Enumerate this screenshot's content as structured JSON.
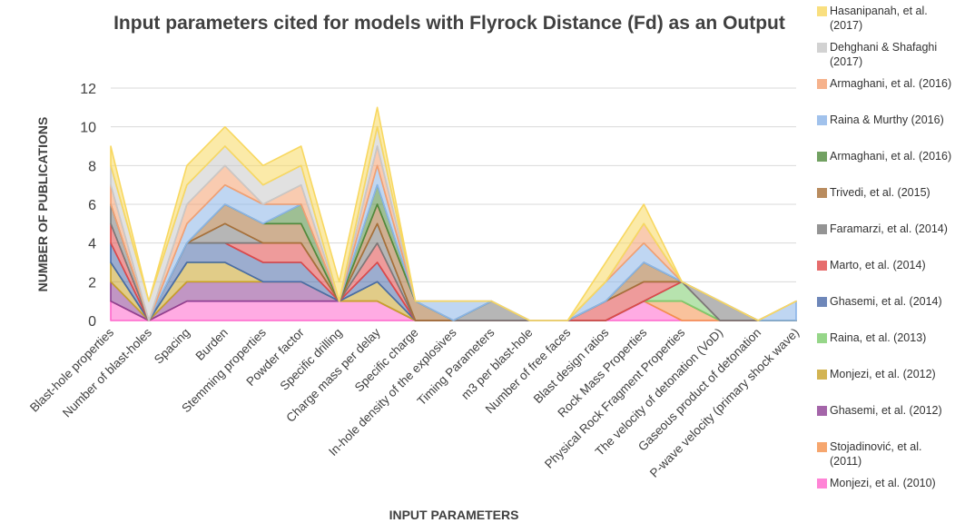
{
  "chart_data": {
    "type": "stacked_area",
    "title": "Input parameters cited for models with Flyrock Distance (Fd) as an Output",
    "x_label": "INPUT PARAMETERS",
    "y_label": "NUMBER OF PUBLICATIONS",
    "categories": [
      "Blast-hole properties",
      "Number of blast-holes",
      "Spacing",
      "Burden",
      "Stemming properties",
      "Powder factor",
      "Specific drilling",
      "Charge mass per delay",
      "Specific charge",
      "In-hole density of the explosives",
      "Timing Parameters",
      "m3 per blast-hole",
      "Number of free faces",
      "Blast design ratios",
      "Rock Mass Properties",
      "Physical Rock Fragment Properties",
      "The velocity of detonation (VoD)",
      "Gaseous product of detonation",
      "P-wave velocity (primary shock wave)"
    ],
    "series": [
      {
        "name": "Monjezi, et al. (2010)",
        "color": "#ff66cc",
        "values": [
          1,
          0,
          1,
          1,
          1,
          1,
          1,
          1,
          0,
          0,
          0,
          0,
          0,
          0,
          1,
          0,
          0,
          0,
          0
        ]
      },
      {
        "name": "Stojadinović, et al. (2011)",
        "color": "#f4904a",
        "values": [
          0,
          0,
          0,
          0,
          0,
          0,
          0,
          0,
          0,
          0,
          0,
          0,
          0,
          0,
          0,
          1,
          0,
          0,
          0
        ]
      },
      {
        "name": "Ghasemi, et al. (2012)",
        "color": "#8e3f94",
        "values": [
          1,
          0,
          1,
          1,
          1,
          1,
          0,
          0,
          0,
          0,
          0,
          0,
          0,
          0,
          0,
          0,
          0,
          0,
          0
        ]
      },
      {
        "name": "Monjezi, et al. (2012)",
        "color": "#c9a227",
        "values": [
          1,
          0,
          1,
          1,
          0,
          0,
          0,
          1,
          0,
          0,
          0,
          0,
          0,
          0,
          0,
          0,
          0,
          0,
          0
        ]
      },
      {
        "name": "Raina, et al. (2013)",
        "color": "#7ccc6c",
        "values": [
          0,
          0,
          0,
          0,
          0,
          0,
          0,
          0,
          0,
          0,
          0,
          0,
          0,
          0,
          0,
          1,
          0,
          0,
          0
        ]
      },
      {
        "name": "Ghasemi, et al. (2014)",
        "color": "#4a6aa8",
        "values": [
          1,
          0,
          1,
          1,
          1,
          1,
          0,
          1,
          0,
          0,
          0,
          0,
          0,
          0,
          0,
          0,
          0,
          0,
          0
        ]
      },
      {
        "name": "Marto, et al. (2014)",
        "color": "#e04848",
        "values": [
          1,
          0,
          0,
          0,
          1,
          1,
          0,
          1,
          0,
          0,
          0,
          0,
          0,
          1,
          1,
          0,
          0,
          0,
          0
        ]
      },
      {
        "name": "Faramarzi, et al. (2014)",
        "color": "#7a7a7a",
        "values": [
          1,
          0,
          0,
          1,
          0,
          0,
          0,
          1,
          0,
          0,
          1,
          0,
          0,
          0,
          0,
          0,
          1,
          0,
          0
        ]
      },
      {
        "name": "Trivedi, et al. (2015)",
        "color": "#a87038",
        "values": [
          0,
          0,
          0,
          1,
          1,
          1,
          0,
          1,
          1,
          0,
          0,
          0,
          0,
          0,
          1,
          0,
          0,
          0,
          0
        ]
      },
      {
        "name": "Armaghani, et al. (2016)",
        "color": "#4f8a3c",
        "values": [
          0,
          0,
          0,
          0,
          0,
          1,
          0,
          1,
          0,
          0,
          0,
          0,
          0,
          0,
          0,
          0,
          0,
          0,
          0
        ]
      },
      {
        "name": "Raina & Murthy (2016)",
        "color": "#8ab4e8",
        "values": [
          0,
          0,
          1,
          1,
          1,
          0,
          0,
          1,
          0,
          1,
          0,
          0,
          0,
          1,
          1,
          0,
          0,
          0,
          1
        ]
      },
      {
        "name": "Armaghani, et al. (2016)",
        "color": "#f4a070",
        "values": [
          1,
          0,
          1,
          1,
          0,
          1,
          0,
          1,
          0,
          0,
          0,
          0,
          0,
          0,
          1,
          0,
          0,
          0,
          0
        ]
      },
      {
        "name": "Dehghani & Shafaghi (2017)",
        "color": "#c8c8c8",
        "values": [
          1,
          1,
          1,
          1,
          1,
          1,
          0,
          1,
          0,
          0,
          0,
          0,
          0,
          0,
          0,
          0,
          0,
          0,
          0
        ]
      },
      {
        "name": "Hasanipanah, et al. (2017)",
        "color": "#f8d860",
        "values": [
          1,
          0,
          1,
          1,
          1,
          1,
          1,
          1,
          0,
          0,
          0,
          0,
          0,
          1,
          1,
          0,
          0,
          0,
          0
        ]
      }
    ],
    "ylim": [
      0,
      12
    ],
    "yticks": [
      0,
      2,
      4,
      6,
      8,
      10,
      12
    ],
    "grid": true
  }
}
